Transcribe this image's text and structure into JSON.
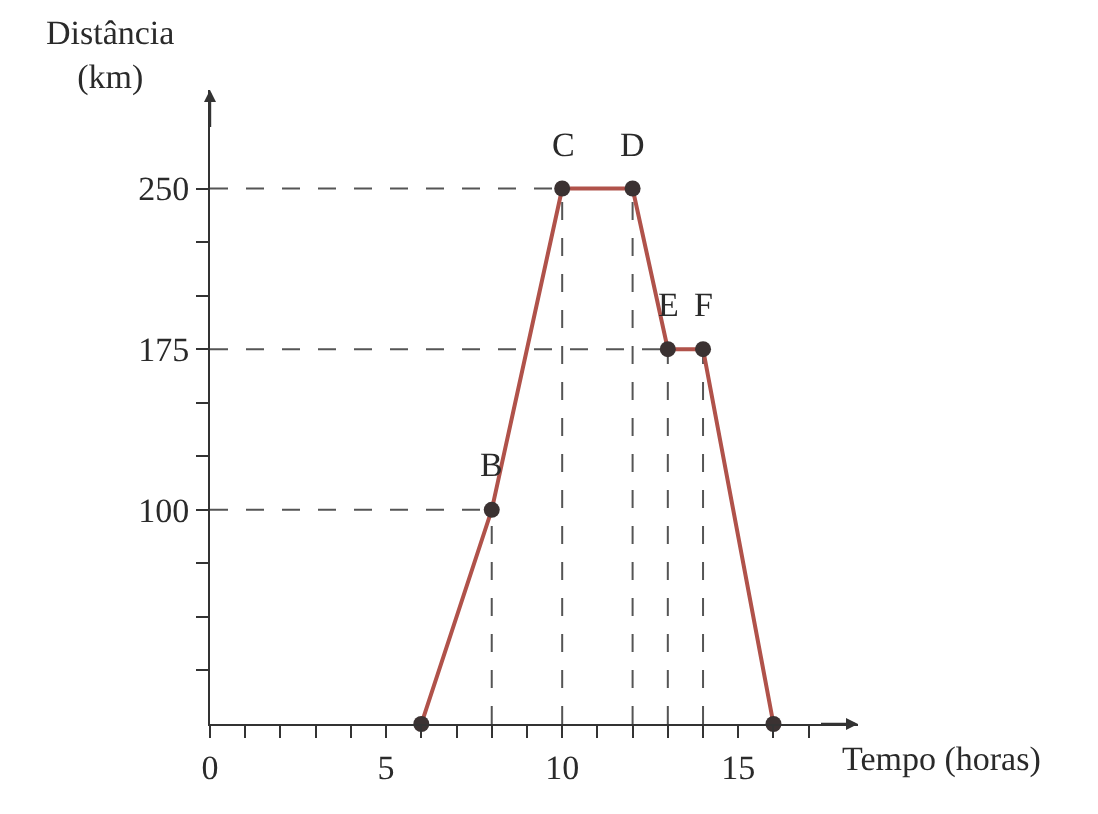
{
  "chart_data": {
    "type": "line",
    "xlabel": "Tempo (horas)",
    "ylabel": "Distância\n(km)",
    "x": [
      6,
      8,
      10,
      12,
      13,
      14,
      16
    ],
    "series": [
      {
        "color": "#b0524a",
        "values": [
          0,
          100,
          250,
          250,
          175,
          175,
          0
        ]
      }
    ],
    "marker": "circle",
    "line_style": "solid",
    "grid": false,
    "xlim": [
      0,
      18.4
    ],
    "ylim": [
      0,
      296
    ],
    "xticks": [
      {
        "value": 0,
        "label": "0"
      },
      {
        "value": 1,
        "label": null
      },
      {
        "value": 2,
        "label": null
      },
      {
        "value": 3,
        "label": null
      },
      {
        "value": 4,
        "label": null
      },
      5,
      {
        "value": 6,
        "label": null
      },
      {
        "value": 7,
        "label": null
      },
      {
        "value": 8,
        "label": null
      },
      {
        "value": 9,
        "label": null
      },
      10,
      {
        "value": 11,
        "label": null
      },
      {
        "value": 12,
        "label": null
      },
      {
        "value": 13,
        "label": null
      },
      {
        "value": 14,
        "label": null
      },
      15,
      {
        "value": 16,
        "label": null
      },
      {
        "value": 17,
        "label": null
      }
    ],
    "yticks": [
      {
        "value": 25,
        "label": null
      },
      {
        "value": 50,
        "label": null
      },
      {
        "value": 75,
        "label": null
      },
      100,
      {
        "value": 125,
        "label": null
      },
      {
        "value": 150,
        "label": null
      },
      175,
      {
        "value": 200,
        "label": null
      },
      {
        "value": 225,
        "label": null
      },
      250
    ],
    "ref_lines": [
      {
        "axis": "y",
        "value": 250,
        "line_style": "dashed"
      },
      {
        "axis": "y",
        "value": 175,
        "line_style": "dashed"
      },
      {
        "axis": "y",
        "value": 100,
        "line_style": "dashed"
      },
      {
        "axis": "x",
        "value": 8,
        "line_style": "dashed"
      },
      {
        "axis": "x",
        "value": 10,
        "line_style": "dashed"
      },
      {
        "axis": "x",
        "value": 12,
        "line_style": "dashed"
      },
      {
        "axis": "x",
        "value": 13,
        "line_style": "dashed"
      },
      {
        "axis": "x",
        "value": 14,
        "line_style": "dashed"
      }
    ],
    "annotations": [
      {
        "text": "B",
        "x": 8,
        "y": 100
      },
      {
        "text": "C",
        "x": 10,
        "y": 250
      },
      {
        "text": "D",
        "x": 12,
        "y": 250
      },
      {
        "text": "E",
        "x": 13,
        "y": 175
      },
      {
        "text": "F",
        "x": 14,
        "y": 175
      }
    ]
  }
}
